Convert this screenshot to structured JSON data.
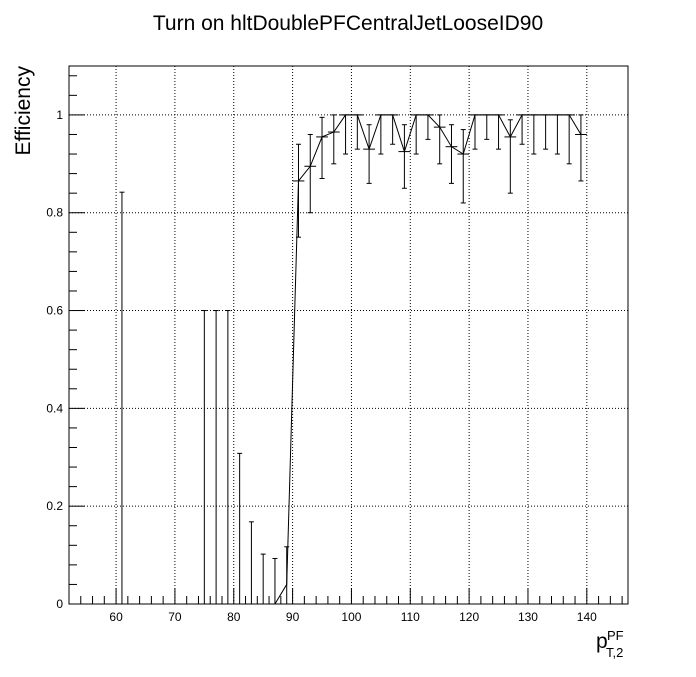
{
  "chart_data": {
    "type": "scatter",
    "title": "Turn on hltDoublePFCentralJetLooseID90",
    "ylabel": "Efficiency",
    "xlabel_main": "p",
    "xlabel_super": "PF",
    "xlabel_sub": "T,2",
    "xlim": [
      52,
      147
    ],
    "ylim": [
      0,
      1.1
    ],
    "grid": true,
    "grid_style": "dotted",
    "legend": "none",
    "x_ticks": [
      60,
      70,
      80,
      90,
      100,
      110,
      120,
      130,
      140
    ],
    "x_tick_labels": [
      "60",
      "70",
      "80",
      "90",
      "100",
      "110",
      "120",
      "130",
      "140"
    ],
    "y_ticks": [
      0,
      0.2,
      0.4,
      0.6,
      0.8,
      1
    ],
    "y_tick_labels": [
      "0",
      "0.2",
      "0.4",
      "0.6",
      "0.8",
      "1"
    ],
    "colors": {
      "marker": "#000000",
      "frame": "#000000",
      "background": "#ffffff"
    },
    "points": [
      {
        "x": 61,
        "xerr": 0,
        "y": 0,
        "ylo": 0,
        "yhi": 0.842
      },
      {
        "x": 75,
        "xerr": 0,
        "y": 0,
        "ylo": 0,
        "yhi": 0.6
      },
      {
        "x": 77,
        "xerr": 0,
        "y": 0,
        "ylo": 0,
        "yhi": 0.6
      },
      {
        "x": 79,
        "xerr": 0,
        "y": 0,
        "ylo": 0,
        "yhi": 0.6
      },
      {
        "x": 81,
        "xerr": 0,
        "y": 0,
        "ylo": 0,
        "yhi": 0.308
      },
      {
        "x": 83,
        "xerr": 0,
        "y": 0,
        "ylo": 0,
        "yhi": 0.168
      },
      {
        "x": 85,
        "xerr": 0,
        "y": 0,
        "ylo": 0,
        "yhi": 0.102
      },
      {
        "x": 87,
        "xerr": 0,
        "y": 0,
        "ylo": 0,
        "yhi": 0.093
      },
      {
        "x": 89,
        "xerr": 0,
        "y": 0.04,
        "ylo": 0.0,
        "yhi": 0.117
      },
      {
        "x": 91,
        "xerr": 1,
        "y": 0.865,
        "ylo": 0.75,
        "yhi": 0.94
      },
      {
        "x": 93,
        "xerr": 1,
        "y": 0.895,
        "ylo": 0.8,
        "yhi": 0.96
      },
      {
        "x": 95,
        "xerr": 1,
        "y": 0.955,
        "ylo": 0.87,
        "yhi": 0.995
      },
      {
        "x": 97,
        "xerr": 1,
        "y": 0.965,
        "ylo": 0.9,
        "yhi": 1.0
      },
      {
        "x": 99,
        "xerr": 1,
        "y": 1.0,
        "ylo": 0.92,
        "yhi": 1.0
      },
      {
        "x": 101,
        "xerr": 1,
        "y": 1.0,
        "ylo": 0.93,
        "yhi": 1.0
      },
      {
        "x": 103,
        "xerr": 1,
        "y": 0.93,
        "ylo": 0.86,
        "yhi": 0.98
      },
      {
        "x": 105,
        "xerr": 1,
        "y": 1.0,
        "ylo": 0.92,
        "yhi": 1.0
      },
      {
        "x": 107,
        "xerr": 1,
        "y": 1.0,
        "ylo": 0.94,
        "yhi": 1.0
      },
      {
        "x": 109,
        "xerr": 1,
        "y": 0.925,
        "ylo": 0.85,
        "yhi": 0.98
      },
      {
        "x": 111,
        "xerr": 1,
        "y": 1.0,
        "ylo": 0.92,
        "yhi": 1.0
      },
      {
        "x": 113,
        "xerr": 1,
        "y": 1.0,
        "ylo": 0.95,
        "yhi": 1.0
      },
      {
        "x": 115,
        "xerr": 1,
        "y": 0.975,
        "ylo": 0.9,
        "yhi": 1.0
      },
      {
        "x": 117,
        "xerr": 1,
        "y": 0.935,
        "ylo": 0.86,
        "yhi": 0.98
      },
      {
        "x": 119,
        "xerr": 1,
        "y": 0.92,
        "ylo": 0.82,
        "yhi": 0.97
      },
      {
        "x": 121,
        "xerr": 1,
        "y": 1.0,
        "ylo": 0.93,
        "yhi": 1.0
      },
      {
        "x": 123,
        "xerr": 1,
        "y": 1.0,
        "ylo": 0.95,
        "yhi": 1.0
      },
      {
        "x": 125,
        "xerr": 1,
        "y": 1.0,
        "ylo": 0.93,
        "yhi": 1.0
      },
      {
        "x": 127,
        "xerr": 1,
        "y": 0.955,
        "ylo": 0.84,
        "yhi": 0.99
      },
      {
        "x": 129,
        "xerr": 1,
        "y": 1.0,
        "ylo": 0.94,
        "yhi": 1.0
      },
      {
        "x": 131,
        "xerr": 1,
        "y": 1.0,
        "ylo": 0.92,
        "yhi": 1.0
      },
      {
        "x": 133,
        "xerr": 1,
        "y": 1.0,
        "ylo": 0.93,
        "yhi": 1.0
      },
      {
        "x": 135,
        "xerr": 1,
        "y": 1.0,
        "ylo": 0.92,
        "yhi": 1.0
      },
      {
        "x": 137,
        "xerr": 1,
        "y": 1.0,
        "ylo": 0.9,
        "yhi": 1.0
      },
      {
        "x": 139,
        "xerr": 1,
        "y": 0.96,
        "ylo": 0.865,
        "yhi": 1.0
      }
    ]
  }
}
